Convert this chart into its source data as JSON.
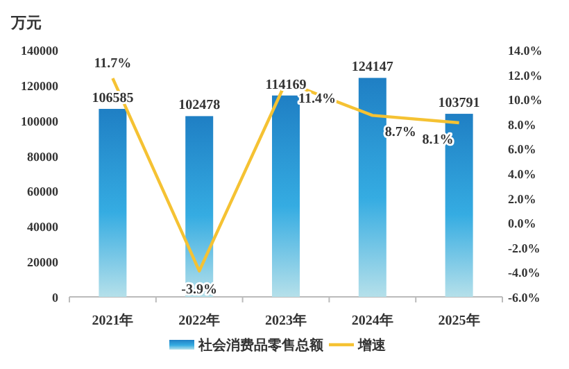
{
  "chart_data": {
    "type": "bar",
    "ylabel": "万元",
    "categories": [
      "2021年",
      "2022年",
      "2023年",
      "2024年",
      "2025年"
    ],
    "ylim": [
      0,
      140000
    ],
    "yticks": [
      0,
      20000,
      40000,
      60000,
      80000,
      100000,
      120000,
      140000
    ],
    "y2lim": [
      -6,
      14
    ],
    "y2ticks": [
      {
        "value": -6,
        "label": "-6.0%"
      },
      {
        "value": -4,
        "label": "-4.0%"
      },
      {
        "value": -2,
        "label": "-2.0%"
      },
      {
        "value": 0,
        "label": "0.0%"
      },
      {
        "value": 2,
        "label": "2.0%"
      },
      {
        "value": 4,
        "label": "4.0%"
      },
      {
        "value": 6,
        "label": "6.0%"
      },
      {
        "value": 8,
        "label": "8.0%"
      },
      {
        "value": 10,
        "label": "10.0%"
      },
      {
        "value": 12,
        "label": "12.0%"
      },
      {
        "value": 14,
        "label": "14.0%"
      }
    ],
    "series": [
      {
        "name": "社会消费品零售总额",
        "color": "#1f7fc4",
        "values": [
          106585,
          102478,
          114169,
          124147,
          103791
        ],
        "value_labels": [
          "106585",
          "102478",
          "114169",
          "124147",
          "103791"
        ]
      },
      {
        "name": "增速",
        "type": "line",
        "axis": "y2",
        "color": "#f5c233",
        "values": [
          11.7,
          -3.9,
          11.4,
          8.7,
          8.1
        ],
        "value_labels": [
          "11.7%",
          "-3.9%",
          "11.4%",
          "8.7%",
          "8.1%"
        ]
      }
    ],
    "grid": false,
    "legend": "bottom"
  }
}
